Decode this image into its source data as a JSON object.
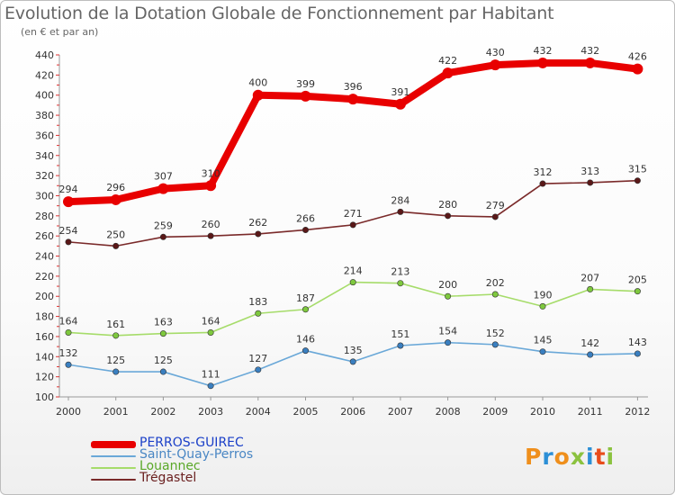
{
  "title": "Evolution de la Dotation Globale de Fonctionnement par Habitant",
  "subtitle": "(en € et par an)",
  "logo": {
    "text": "Proxiti",
    "colors": [
      "#ef8f1c",
      "#2c8fd6",
      "#ef8f1c",
      "#8bc23f",
      "#2c8fd6",
      "#e84c1b",
      "#8bc23f"
    ]
  },
  "chart_data": {
    "type": "line",
    "title": "Evolution de la Dotation Globale de Fonctionnement par Habitant",
    "subtitle": "(en € et par an)",
    "x": [
      "2000",
      "2001",
      "2002",
      "2003",
      "2004",
      "2005",
      "2006",
      "2007",
      "2008",
      "2009",
      "2010",
      "2011",
      "2012"
    ],
    "ylim": [
      100,
      440
    ],
    "yticks": [
      100,
      120,
      140,
      160,
      180,
      200,
      220,
      240,
      260,
      280,
      300,
      320,
      340,
      360,
      380,
      400,
      420,
      440
    ],
    "grid": false,
    "legend_position": "bottom-left",
    "series": [
      {
        "name": "PERROS-GUIREC",
        "color": "#e80000",
        "values": [
          294,
          296,
          307,
          310,
          400,
          399,
          396,
          391,
          422,
          430,
          432,
          432,
          426
        ]
      },
      {
        "name": "Saint-Quay-Perros",
        "color": "#6aa8d8",
        "marker": "#3a7fc0",
        "values": [
          132,
          125,
          125,
          111,
          127,
          146,
          135,
          151,
          154,
          152,
          145,
          142,
          143
        ]
      },
      {
        "name": "Louannec",
        "color": "#a6dc6a",
        "marker": "#7ec83e",
        "values": [
          164,
          161,
          163,
          164,
          183,
          187,
          214,
          213,
          200,
          202,
          190,
          207,
          205
        ]
      },
      {
        "name": "Trégastel",
        "color": "#7a2a2a",
        "marker": "#5a1818",
        "values": [
          254,
          250,
          259,
          260,
          262,
          266,
          271,
          284,
          280,
          279,
          312,
          313,
          315
        ]
      }
    ]
  }
}
